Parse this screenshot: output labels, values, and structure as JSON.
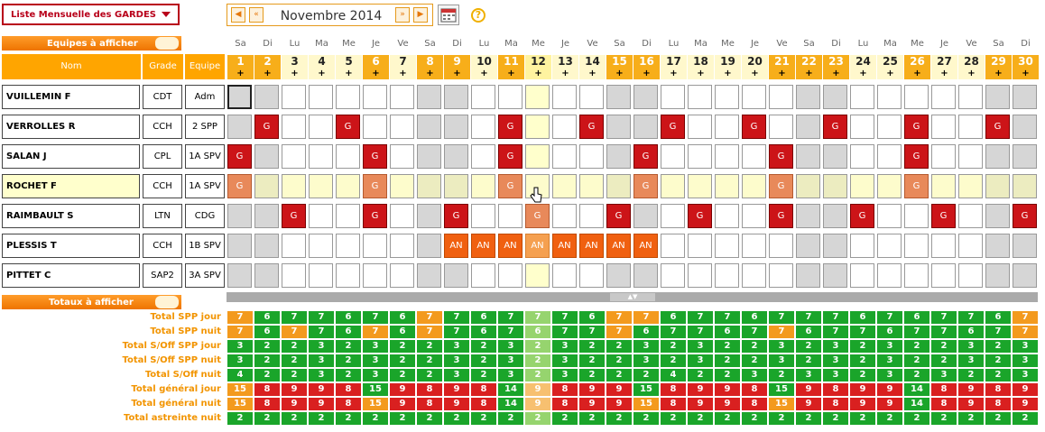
{
  "toolbar": {
    "view_select": "Liste Mensuelle des GARDES",
    "month_label": "Novembre 2014",
    "help": "?"
  },
  "sections": {
    "equipes": "Equipes à afficher",
    "totaux": "Totaux à afficher"
  },
  "headers": {
    "nom": "Nom",
    "grade": "Grade",
    "equipe": "Equipe"
  },
  "days": {
    "numbers": [
      "1",
      "2",
      "3",
      "4",
      "5",
      "6",
      "7",
      "8",
      "9",
      "10",
      "11",
      "12",
      "13",
      "14",
      "15",
      "16",
      "17",
      "18",
      "19",
      "20",
      "21",
      "22",
      "23",
      "24",
      "25",
      "26",
      "27",
      "28",
      "29",
      "30"
    ],
    "dow": [
      "Sa",
      "Di",
      "Lu",
      "Ma",
      "Me",
      "Je",
      "Ve",
      "Sa",
      "Di",
      "Lu",
      "Ma",
      "Me",
      "Je",
      "Ve",
      "Sa",
      "Di",
      "Lu",
      "Ma",
      "Me",
      "Je",
      "Ve",
      "Sa",
      "Di",
      "Lu",
      "Ma",
      "Me",
      "Je",
      "Ve",
      "Sa",
      "Di"
    ],
    "plus": "+",
    "highlighted": [
      1,
      2,
      6,
      8,
      9,
      11,
      15,
      16,
      21,
      22,
      23,
      26,
      29,
      30
    ],
    "selected": 12
  },
  "people": [
    {
      "name": "VUILLEMIN F",
      "grade": "CDT",
      "equipe": "Adm",
      "cells": {}
    },
    {
      "name": "VERROLLES R",
      "grade": "CCH",
      "equipe": "2 SPP",
      "cells": {
        "2": "G",
        "5": "G",
        "11": "G",
        "14": "G",
        "17": "G",
        "20": "G",
        "23": "G",
        "26": "G",
        "29": "G"
      }
    },
    {
      "name": "SALAN J",
      "grade": "CPL",
      "equipe": "1A SPV",
      "cells": {
        "1": "G",
        "6": "G",
        "11": "G",
        "16": "G",
        "21": "G",
        "26": "G"
      }
    },
    {
      "name": "ROCHET F",
      "grade": "CCH",
      "equipe": "1A SPV",
      "cells": {
        "1": "G",
        "6": "G",
        "11": "G",
        "16": "G",
        "21": "G",
        "26": "G"
      }
    },
    {
      "name": "RAIMBAULT S",
      "grade": "LTN",
      "equipe": "CDG",
      "cells": {
        "3": "G",
        "6": "G",
        "9": "G",
        "12": "G",
        "15": "G",
        "18": "G",
        "21": "G",
        "24": "G",
        "27": "G",
        "30": "G"
      }
    },
    {
      "name": "PLESSIS T",
      "grade": "CCH",
      "equipe": "1B SPV",
      "cells": {
        "9": "AN",
        "10": "AN",
        "11": "AN",
        "12": "AN",
        "13": "AN",
        "14": "AN",
        "15": "AN",
        "16": "AN"
      }
    },
    {
      "name": "PITTET C",
      "grade": "SAP2",
      "equipe": "3A SPV",
      "cells": {}
    }
  ],
  "totals": [
    {
      "label": "Total SPP jour",
      "values": [
        "7",
        "6",
        "7",
        "7",
        "6",
        "7",
        "6",
        "7",
        "7",
        "6",
        "7",
        "7",
        "7",
        "6",
        "7",
        "7",
        "6",
        "7",
        "7",
        "6",
        "7",
        "7",
        "7",
        "6",
        "7",
        "6",
        "7",
        "7",
        "6",
        "7"
      ]
    },
    {
      "label": "Total SPP nuit",
      "values": [
        "7",
        "6",
        "7",
        "7",
        "6",
        "7",
        "6",
        "7",
        "7",
        "6",
        "7",
        "6",
        "7",
        "7",
        "7",
        "6",
        "7",
        "7",
        "6",
        "7",
        "7",
        "6",
        "7",
        "7",
        "6",
        "7",
        "7",
        "6",
        "7",
        "7"
      ]
    },
    {
      "label": "Total S/Off SPP jour",
      "values": [
        "3",
        "2",
        "2",
        "3",
        "2",
        "3",
        "2",
        "2",
        "3",
        "2",
        "3",
        "2",
        "3",
        "2",
        "2",
        "3",
        "2",
        "3",
        "2",
        "2",
        "3",
        "2",
        "3",
        "2",
        "3",
        "2",
        "2",
        "3",
        "2",
        "3"
      ]
    },
    {
      "label": "Total S/Off SPP nuit",
      "values": [
        "3",
        "2",
        "2",
        "3",
        "2",
        "3",
        "2",
        "2",
        "3",
        "2",
        "3",
        "2",
        "3",
        "2",
        "2",
        "3",
        "2",
        "3",
        "2",
        "2",
        "3",
        "2",
        "3",
        "2",
        "3",
        "2",
        "2",
        "3",
        "2",
        "3"
      ]
    },
    {
      "label": "Total S/Off nuit",
      "values": [
        "4",
        "2",
        "2",
        "3",
        "2",
        "3",
        "2",
        "2",
        "3",
        "2",
        "3",
        "2",
        "3",
        "2",
        "2",
        "2",
        "4",
        "2",
        "2",
        "3",
        "2",
        "3",
        "3",
        "2",
        "3",
        "2",
        "3",
        "2",
        "2",
        "3"
      ]
    },
    {
      "label": "Total général jour",
      "values": [
        "15",
        "8",
        "9",
        "9",
        "8",
        "15",
        "9",
        "8",
        "9",
        "8",
        "14",
        "9",
        "8",
        "9",
        "9",
        "15",
        "8",
        "9",
        "9",
        "8",
        "15",
        "9",
        "8",
        "9",
        "9",
        "14",
        "8",
        "9",
        "8",
        "9"
      ]
    },
    {
      "label": "Total général nuit",
      "values": [
        "15",
        "8",
        "9",
        "9",
        "8",
        "15",
        "9",
        "8",
        "9",
        "8",
        "14",
        "9",
        "8",
        "9",
        "9",
        "15",
        "8",
        "9",
        "9",
        "8",
        "15",
        "9",
        "8",
        "9",
        "9",
        "14",
        "8",
        "9",
        "8",
        "9"
      ]
    },
    {
      "label": "Total astreinte nuit",
      "values": [
        "2",
        "2",
        "2",
        "2",
        "2",
        "2",
        "2",
        "2",
        "2",
        "2",
        "2",
        "2",
        "2",
        "2",
        "2",
        "2",
        "2",
        "2",
        "2",
        "2",
        "2",
        "2",
        "2",
        "2",
        "2",
        "2",
        "2",
        "2",
        "2",
        "2"
      ]
    }
  ],
  "total_colors": [
    [
      "org",
      "grn",
      "grn",
      "grn",
      "grn",
      "grn",
      "grn",
      "org",
      "grn",
      "grn",
      "grn",
      "sel",
      "grn",
      "grn",
      "org",
      "org",
      "grn",
      "grn",
      "grn",
      "grn",
      "grn",
      "grn",
      "grn",
      "grn",
      "grn",
      "grn",
      "grn",
      "grn",
      "grn",
      "org"
    ],
    [
      "org",
      "grn",
      "org",
      "grn",
      "grn",
      "org",
      "grn",
      "org",
      "grn",
      "grn",
      "grn",
      "sel",
      "grn",
      "grn",
      "org",
      "grn",
      "grn",
      "grn",
      "grn",
      "grn",
      "org",
      "grn",
      "grn",
      "grn",
      "grn",
      "grn",
      "grn",
      "grn",
      "grn",
      "org"
    ],
    [
      "grn",
      "grn",
      "grn",
      "grn",
      "grn",
      "grn",
      "grn",
      "grn",
      "grn",
      "grn",
      "grn",
      "sel",
      "grn",
      "grn",
      "grn",
      "grn",
      "grn",
      "grn",
      "grn",
      "grn",
      "grn",
      "grn",
      "grn",
      "grn",
      "grn",
      "grn",
      "grn",
      "grn",
      "grn",
      "grn"
    ],
    [
      "grn",
      "grn",
      "grn",
      "grn",
      "grn",
      "grn",
      "grn",
      "grn",
      "grn",
      "grn",
      "grn",
      "sel",
      "grn",
      "grn",
      "grn",
      "grn",
      "grn",
      "grn",
      "grn",
      "grn",
      "grn",
      "grn",
      "grn",
      "grn",
      "grn",
      "grn",
      "grn",
      "grn",
      "grn",
      "grn"
    ],
    [
      "grn",
      "grn",
      "grn",
      "grn",
      "grn",
      "grn",
      "grn",
      "grn",
      "grn",
      "grn",
      "grn",
      "sel",
      "grn",
      "grn",
      "grn",
      "grn",
      "grn",
      "grn",
      "grn",
      "grn",
      "grn",
      "grn",
      "grn",
      "grn",
      "grn",
      "grn",
      "grn",
      "grn",
      "grn",
      "grn"
    ],
    [
      "org",
      "red",
      "red",
      "red",
      "red",
      "grn",
      "red",
      "red",
      "red",
      "red",
      "grn",
      "sel org",
      "red",
      "red",
      "red",
      "grn",
      "red",
      "red",
      "red",
      "red",
      "grn",
      "red",
      "red",
      "red",
      "red",
      "grn",
      "red",
      "red",
      "red",
      "red"
    ],
    [
      "org",
      "red",
      "red",
      "red",
      "red",
      "org",
      "red",
      "red",
      "red",
      "red",
      "grn",
      "sel org",
      "red",
      "red",
      "red",
      "org",
      "red",
      "red",
      "red",
      "red",
      "org",
      "red",
      "red",
      "red",
      "red",
      "grn",
      "red",
      "red",
      "red",
      "red"
    ],
    [
      "grn",
      "grn",
      "grn",
      "grn",
      "grn",
      "grn",
      "grn",
      "grn",
      "grn",
      "grn",
      "grn",
      "sel",
      "grn",
      "grn",
      "grn",
      "grn",
      "grn",
      "grn",
      "grn",
      "grn",
      "grn",
      "grn",
      "grn",
      "grn",
      "grn",
      "grn",
      "grn",
      "grn",
      "grn",
      "grn"
    ]
  ]
}
